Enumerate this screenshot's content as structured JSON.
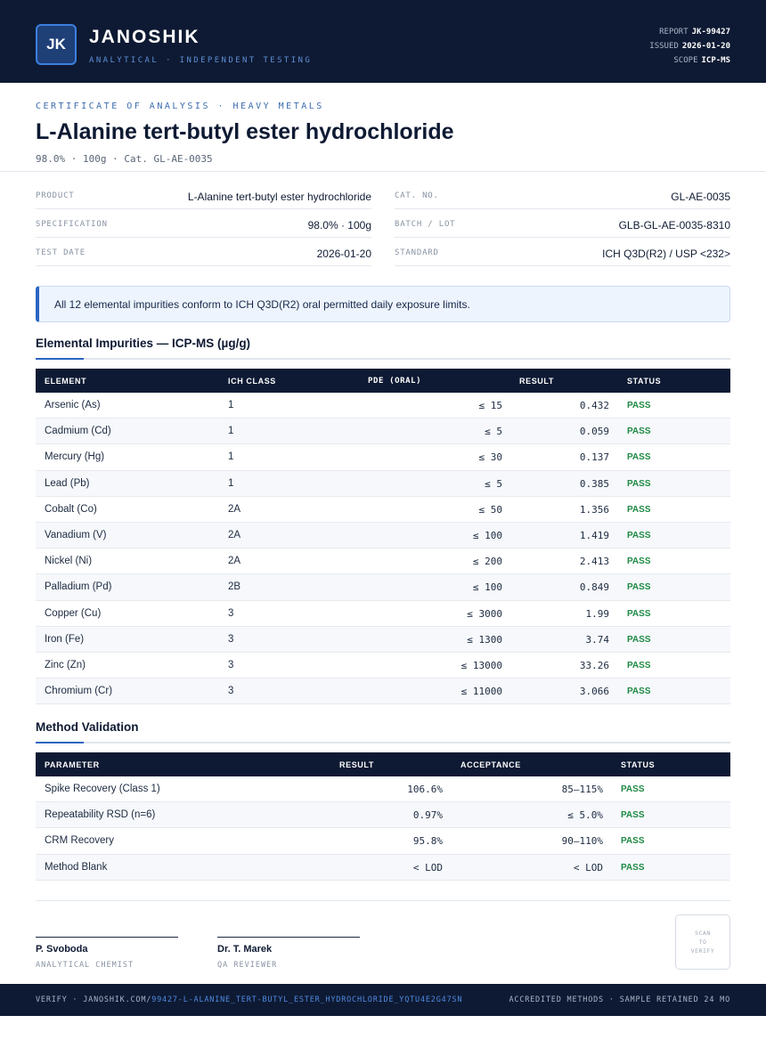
{
  "brand": {
    "logo_text": "JK",
    "name": "JANOSHIK",
    "tagline": "ANALYTICAL · INDEPENDENT TESTING"
  },
  "meta": {
    "report_label": "REPORT",
    "report_value": "JK-99427",
    "issued_label": "ISSUED",
    "issued_value": "2026-01-20",
    "scope_label": "SCOPE",
    "scope_value": "ICP-MS"
  },
  "doc": {
    "eyebrow": "CERTIFICATE OF ANALYSIS · HEAVY METALS",
    "title": "L-Alanine tert-butyl ester hydrochloride",
    "subtitle": "98.0% · 100g  ·  Cat. GL-AE-0035"
  },
  "info": {
    "left": [
      {
        "key": "PRODUCT",
        "value": "L-Alanine tert-butyl ester hydrochloride"
      },
      {
        "key": "SPECIFICATION",
        "value": "98.0% · 100g"
      },
      {
        "key": "TEST DATE",
        "value": "2026-01-20"
      }
    ],
    "right": [
      {
        "key": "CAT. NO.",
        "value": "GL-AE-0035"
      },
      {
        "key": "BATCH / LOT",
        "value": "GLB-GL-AE-0035-8310"
      },
      {
        "key": "STANDARD",
        "value": "ICH Q3D(R2) / USP <232>"
      }
    ]
  },
  "notice": "All 12 elemental impurities conform to ICH Q3D(R2) oral permitted daily exposure limits.",
  "impurities": {
    "title": "Elemental Impurities — ICP-MS (µg/g)",
    "headers": [
      "ELEMENT",
      "ICH CLASS",
      "PDE (ORAL)",
      "RESULT",
      "STATUS"
    ],
    "rows": [
      {
        "element": "Arsenic (As)",
        "class": "1",
        "pde": "≤ 15",
        "result": "0.432",
        "status": "PASS"
      },
      {
        "element": "Cadmium (Cd)",
        "class": "1",
        "pde": "≤ 5",
        "result": "0.059",
        "status": "PASS"
      },
      {
        "element": "Mercury (Hg)",
        "class": "1",
        "pde": "≤ 30",
        "result": "0.137",
        "status": "PASS"
      },
      {
        "element": "Lead (Pb)",
        "class": "1",
        "pde": "≤ 5",
        "result": "0.385",
        "status": "PASS"
      },
      {
        "element": "Cobalt (Co)",
        "class": "2A",
        "pde": "≤ 50",
        "result": "1.356",
        "status": "PASS"
      },
      {
        "element": "Vanadium (V)",
        "class": "2A",
        "pde": "≤ 100",
        "result": "1.419",
        "status": "PASS"
      },
      {
        "element": "Nickel (Ni)",
        "class": "2A",
        "pde": "≤ 200",
        "result": "2.413",
        "status": "PASS"
      },
      {
        "element": "Palladium (Pd)",
        "class": "2B",
        "pde": "≤ 100",
        "result": "0.849",
        "status": "PASS"
      },
      {
        "element": "Copper (Cu)",
        "class": "3",
        "pde": "≤ 3000",
        "result": "1.99",
        "status": "PASS"
      },
      {
        "element": "Iron (Fe)",
        "class": "3",
        "pde": "≤ 1300",
        "result": "3.74",
        "status": "PASS"
      },
      {
        "element": "Zinc (Zn)",
        "class": "3",
        "pde": "≤ 13000",
        "result": "33.26",
        "status": "PASS"
      },
      {
        "element": "Chromium (Cr)",
        "class": "3",
        "pde": "≤ 11000",
        "result": "3.066",
        "status": "PASS"
      }
    ]
  },
  "validation": {
    "title": "Method Validation",
    "headers": [
      "PARAMETER",
      "RESULT",
      "ACCEPTANCE",
      "STATUS"
    ],
    "rows": [
      {
        "parameter": "Spike Recovery (Class 1)",
        "result": "106.6%",
        "acceptance": "85–115%",
        "status": "PASS"
      },
      {
        "parameter": "Repeatability RSD (n=6)",
        "result": "0.97%",
        "acceptance": "≤ 5.0%",
        "status": "PASS"
      },
      {
        "parameter": "CRM Recovery",
        "result": "95.8%",
        "acceptance": "90–110%",
        "status": "PASS"
      },
      {
        "parameter": "Method Blank",
        "result": "< LOD",
        "acceptance": "< LOD",
        "status": "PASS"
      }
    ]
  },
  "signatures": [
    {
      "name": "P. Svoboda",
      "role": "ANALYTICAL CHEMIST"
    },
    {
      "name": "Dr. T. Marek",
      "role": "QA REVIEWER"
    }
  ],
  "qr": {
    "line1": "SCAN",
    "line2": "TO",
    "line3": "VERIFY"
  },
  "footer": {
    "verify_prefix": "VERIFY · JANOSHIK.COM/",
    "verify_path": "99427-L-ALANINE_TERT-BUTYL_ESTER_HYDROCHLORIDE_YQTU4E2G47SN",
    "right": "ACCREDITED METHODS · SAMPLE RETAINED 24 MO"
  }
}
